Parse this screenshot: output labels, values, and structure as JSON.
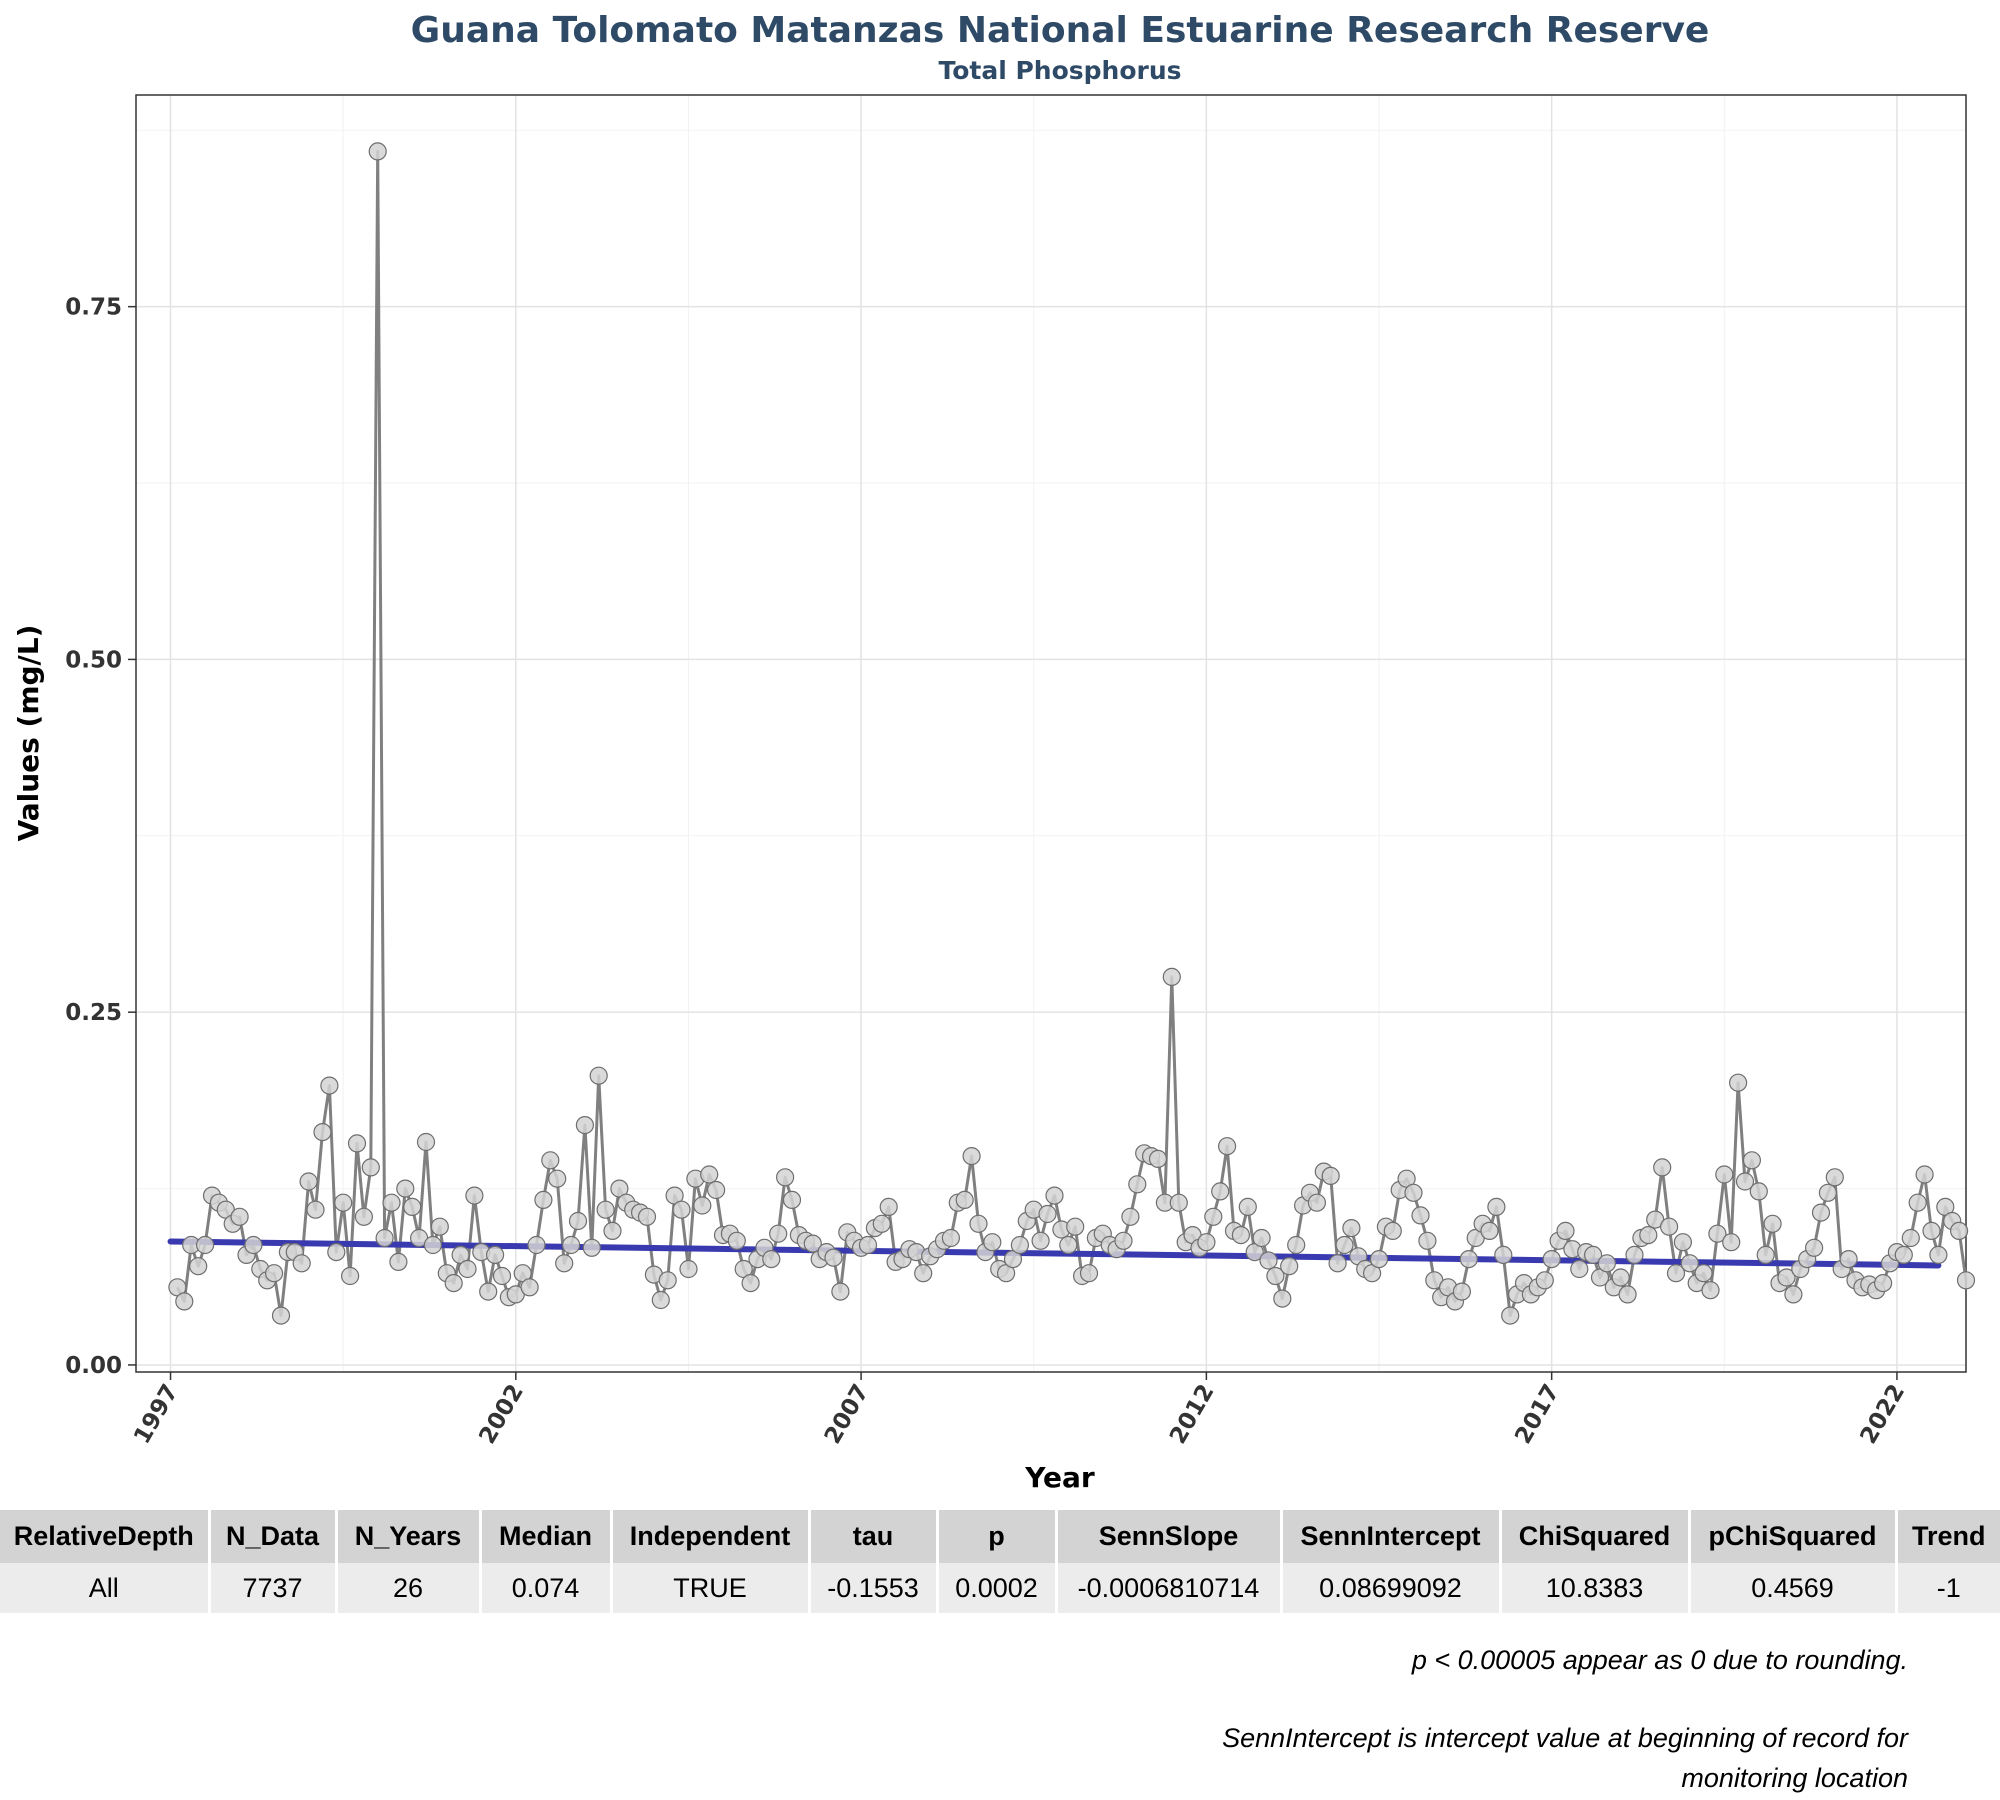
{
  "chart_data": {
    "type": "line",
    "title": "Guana Tolomato Matanzas National Estuarine Research Reserve",
    "subtitle": "Total Phosphorus",
    "xlabel": "Year",
    "ylabel": "Values (mg/L)",
    "xlim": [
      1996.5,
      2023.0
    ],
    "ylim": [
      -0.005,
      0.9
    ],
    "x_ticks": [
      "1997",
      "2002",
      "2007",
      "2012",
      "2017",
      "2022"
    ],
    "y_ticks": [
      "0.00",
      "0.25",
      "0.50",
      "0.75"
    ],
    "grid": true,
    "colors": {
      "observed": "#808080",
      "point_fill": "#d3d3d3",
      "trend": "#3a3ab0"
    },
    "series": [
      {
        "points": [
          [
            1997.1,
            0.055
          ],
          [
            1997.2,
            0.045
          ],
          [
            1997.3,
            0.085
          ],
          [
            1997.4,
            0.07
          ],
          [
            1997.5,
            0.085
          ],
          [
            1997.6,
            0.12
          ],
          [
            1997.7,
            0.115
          ],
          [
            1997.8,
            0.11
          ],
          [
            1997.9,
            0.1
          ],
          [
            1998.0,
            0.105
          ],
          [
            1998.1,
            0.078
          ],
          [
            1998.2,
            0.085
          ],
          [
            1998.3,
            0.068
          ],
          [
            1998.4,
            0.06
          ],
          [
            1998.5,
            0.065
          ],
          [
            1998.6,
            0.035
          ],
          [
            1998.7,
            0.08
          ],
          [
            1998.8,
            0.08
          ],
          [
            1998.9,
            0.072
          ],
          [
            1999.0,
            0.13
          ],
          [
            1999.1,
            0.11
          ],
          [
            1999.2,
            0.165
          ],
          [
            1999.3,
            0.198
          ],
          [
            1999.4,
            0.08
          ],
          [
            1999.5,
            0.115
          ],
          [
            1999.6,
            0.063
          ],
          [
            1999.7,
            0.157
          ],
          [
            1999.8,
            0.105
          ],
          [
            1999.9,
            0.14
          ],
          [
            2000.0,
            0.86
          ],
          [
            2000.1,
            0.09
          ],
          [
            2000.2,
            0.115
          ],
          [
            2000.3,
            0.073
          ],
          [
            2000.4,
            0.125
          ],
          [
            2000.5,
            0.112
          ],
          [
            2000.6,
            0.09
          ],
          [
            2000.7,
            0.158
          ],
          [
            2000.8,
            0.085
          ],
          [
            2000.9,
            0.098
          ],
          [
            2001.0,
            0.065
          ],
          [
            2001.1,
            0.058
          ],
          [
            2001.2,
            0.078
          ],
          [
            2001.3,
            0.068
          ],
          [
            2001.4,
            0.12
          ],
          [
            2001.5,
            0.08
          ],
          [
            2001.6,
            0.052
          ],
          [
            2001.7,
            0.078
          ],
          [
            2001.8,
            0.063
          ],
          [
            2001.9,
            0.048
          ],
          [
            2002.0,
            0.05
          ],
          [
            2002.1,
            0.065
          ],
          [
            2002.2,
            0.055
          ],
          [
            2002.3,
            0.085
          ],
          [
            2002.4,
            0.117
          ],
          [
            2002.5,
            0.145
          ],
          [
            2002.6,
            0.132
          ],
          [
            2002.7,
            0.072
          ],
          [
            2002.8,
            0.085
          ],
          [
            2002.9,
            0.102
          ],
          [
            2003.0,
            0.17
          ],
          [
            2003.1,
            0.083
          ],
          [
            2003.2,
            0.205
          ],
          [
            2003.3,
            0.11
          ],
          [
            2003.4,
            0.095
          ],
          [
            2003.5,
            0.125
          ],
          [
            2003.6,
            0.115
          ],
          [
            2003.7,
            0.11
          ],
          [
            2003.8,
            0.108
          ],
          [
            2003.9,
            0.105
          ],
          [
            2004.0,
            0.064
          ],
          [
            2004.1,
            0.046
          ],
          [
            2004.2,
            0.06
          ],
          [
            2004.3,
            0.12
          ],
          [
            2004.4,
            0.11
          ],
          [
            2004.5,
            0.068
          ],
          [
            2004.6,
            0.132
          ],
          [
            2004.7,
            0.113
          ],
          [
            2004.8,
            0.135
          ],
          [
            2004.9,
            0.124
          ],
          [
            2005.0,
            0.092
          ],
          [
            2005.1,
            0.093
          ],
          [
            2005.2,
            0.088
          ],
          [
            2005.3,
            0.068
          ],
          [
            2005.4,
            0.058
          ],
          [
            2005.5,
            0.075
          ],
          [
            2005.6,
            0.083
          ],
          [
            2005.7,
            0.075
          ],
          [
            2005.8,
            0.093
          ],
          [
            2005.9,
            0.133
          ],
          [
            2006.0,
            0.117
          ],
          [
            2006.1,
            0.092
          ],
          [
            2006.2,
            0.088
          ],
          [
            2006.3,
            0.086
          ],
          [
            2006.4,
            0.075
          ],
          [
            2006.5,
            0.08
          ],
          [
            2006.6,
            0.076
          ],
          [
            2006.7,
            0.052
          ],
          [
            2006.8,
            0.094
          ],
          [
            2006.9,
            0.088
          ],
          [
            2007.0,
            0.083
          ],
          [
            2007.1,
            0.085
          ],
          [
            2007.2,
            0.097
          ],
          [
            2007.3,
            0.1
          ],
          [
            2007.4,
            0.112
          ],
          [
            2007.5,
            0.073
          ],
          [
            2007.6,
            0.075
          ],
          [
            2007.7,
            0.082
          ],
          [
            2007.8,
            0.08
          ],
          [
            2007.9,
            0.065
          ],
          [
            2008.0,
            0.077
          ],
          [
            2008.1,
            0.082
          ],
          [
            2008.2,
            0.088
          ],
          [
            2008.3,
            0.09
          ],
          [
            2008.4,
            0.115
          ],
          [
            2008.5,
            0.117
          ],
          [
            2008.6,
            0.148
          ],
          [
            2008.7,
            0.1
          ],
          [
            2008.8,
            0.08
          ],
          [
            2008.9,
            0.087
          ],
          [
            2009.0,
            0.068
          ],
          [
            2009.1,
            0.065
          ],
          [
            2009.2,
            0.075
          ],
          [
            2009.3,
            0.085
          ],
          [
            2009.4,
            0.102
          ],
          [
            2009.5,
            0.11
          ],
          [
            2009.6,
            0.088
          ],
          [
            2009.7,
            0.107
          ],
          [
            2009.8,
            0.12
          ],
          [
            2009.9,
            0.096
          ],
          [
            2010.0,
            0.085
          ],
          [
            2010.1,
            0.098
          ],
          [
            2010.2,
            0.063
          ],
          [
            2010.3,
            0.065
          ],
          [
            2010.4,
            0.09
          ],
          [
            2010.5,
            0.093
          ],
          [
            2010.6,
            0.085
          ],
          [
            2010.7,
            0.082
          ],
          [
            2010.8,
            0.088
          ],
          [
            2010.9,
            0.105
          ],
          [
            2011.0,
            0.128
          ],
          [
            2011.1,
            0.15
          ],
          [
            2011.2,
            0.148
          ],
          [
            2011.3,
            0.146
          ],
          [
            2011.4,
            0.115
          ],
          [
            2011.5,
            0.275
          ],
          [
            2011.6,
            0.115
          ],
          [
            2011.7,
            0.087
          ],
          [
            2011.8,
            0.092
          ],
          [
            2011.9,
            0.083
          ],
          [
            2012.0,
            0.087
          ],
          [
            2012.1,
            0.105
          ],
          [
            2012.2,
            0.123
          ],
          [
            2012.3,
            0.155
          ],
          [
            2012.4,
            0.095
          ],
          [
            2012.5,
            0.092
          ],
          [
            2012.6,
            0.112
          ],
          [
            2012.7,
            0.08
          ],
          [
            2012.8,
            0.09
          ],
          [
            2012.9,
            0.074
          ],
          [
            2013.0,
            0.063
          ],
          [
            2013.1,
            0.047
          ],
          [
            2013.2,
            0.07
          ],
          [
            2013.3,
            0.085
          ],
          [
            2013.4,
            0.113
          ],
          [
            2013.5,
            0.122
          ],
          [
            2013.6,
            0.115
          ],
          [
            2013.7,
            0.137
          ],
          [
            2013.8,
            0.134
          ],
          [
            2013.9,
            0.072
          ],
          [
            2014.0,
            0.085
          ],
          [
            2014.1,
            0.097
          ],
          [
            2014.2,
            0.077
          ],
          [
            2014.3,
            0.068
          ],
          [
            2014.4,
            0.065
          ],
          [
            2014.5,
            0.075
          ],
          [
            2014.6,
            0.098
          ],
          [
            2014.7,
            0.095
          ],
          [
            2014.8,
            0.124
          ],
          [
            2014.9,
            0.132
          ],
          [
            2015.0,
            0.122
          ],
          [
            2015.1,
            0.106
          ],
          [
            2015.2,
            0.088
          ],
          [
            2015.3,
            0.06
          ],
          [
            2015.4,
            0.048
          ],
          [
            2015.5,
            0.055
          ],
          [
            2015.6,
            0.045
          ],
          [
            2015.7,
            0.052
          ],
          [
            2015.8,
            0.075
          ],
          [
            2015.9,
            0.09
          ],
          [
            2016.0,
            0.1
          ],
          [
            2016.1,
            0.095
          ],
          [
            2016.2,
            0.112
          ],
          [
            2016.3,
            0.078
          ],
          [
            2016.4,
            0.035
          ],
          [
            2016.5,
            0.05
          ],
          [
            2016.6,
            0.058
          ],
          [
            2016.7,
            0.05
          ],
          [
            2016.8,
            0.055
          ],
          [
            2016.9,
            0.06
          ],
          [
            2017.0,
            0.075
          ],
          [
            2017.1,
            0.088
          ],
          [
            2017.2,
            0.095
          ],
          [
            2017.3,
            0.082
          ],
          [
            2017.4,
            0.068
          ],
          [
            2017.5,
            0.08
          ],
          [
            2017.6,
            0.078
          ],
          [
            2017.7,
            0.062
          ],
          [
            2017.8,
            0.072
          ],
          [
            2017.9,
            0.055
          ],
          [
            2018.0,
            0.062
          ],
          [
            2018.1,
            0.05
          ],
          [
            2018.2,
            0.078
          ],
          [
            2018.3,
            0.09
          ],
          [
            2018.4,
            0.092
          ],
          [
            2018.5,
            0.103
          ],
          [
            2018.6,
            0.14
          ],
          [
            2018.7,
            0.098
          ],
          [
            2018.8,
            0.065
          ],
          [
            2018.9,
            0.087
          ],
          [
            2019.0,
            0.072
          ],
          [
            2019.1,
            0.058
          ],
          [
            2019.2,
            0.065
          ],
          [
            2019.3,
            0.053
          ],
          [
            2019.4,
            0.093
          ],
          [
            2019.5,
            0.135
          ],
          [
            2019.6,
            0.087
          ],
          [
            2019.7,
            0.2
          ],
          [
            2019.8,
            0.13
          ],
          [
            2019.9,
            0.145
          ],
          [
            2020.0,
            0.123
          ],
          [
            2020.1,
            0.078
          ],
          [
            2020.2,
            0.1
          ],
          [
            2020.3,
            0.058
          ],
          [
            2020.4,
            0.062
          ],
          [
            2020.5,
            0.05
          ],
          [
            2020.6,
            0.068
          ],
          [
            2020.7,
            0.075
          ],
          [
            2020.8,
            0.083
          ],
          [
            2020.9,
            0.108
          ],
          [
            2021.0,
            0.122
          ],
          [
            2021.1,
            0.133
          ],
          [
            2021.2,
            0.068
          ],
          [
            2021.3,
            0.075
          ],
          [
            2021.4,
            0.06
          ],
          [
            2021.5,
            0.055
          ],
          [
            2021.6,
            0.057
          ],
          [
            2021.7,
            0.053
          ],
          [
            2021.8,
            0.058
          ],
          [
            2021.9,
            0.072
          ],
          [
            2022.0,
            0.08
          ],
          [
            2022.1,
            0.078
          ],
          [
            2022.2,
            0.09
          ],
          [
            2022.3,
            0.115
          ],
          [
            2022.4,
            0.135
          ],
          [
            2022.5,
            0.095
          ],
          [
            2022.6,
            0.078
          ],
          [
            2022.7,
            0.112
          ],
          [
            2022.8,
            0.102
          ],
          [
            2022.9,
            0.095
          ],
          [
            2023.0,
            0.06
          ]
        ]
      },
      {
        "type": "trend",
        "x": [
          1997.0,
          2022.6
        ],
        "y": [
          0.0875,
          0.0705
        ]
      }
    ]
  },
  "table": {
    "headers": [
      "RelativeDepth",
      "N_Data",
      "N_Years",
      "Median",
      "Independent",
      "tau",
      "p",
      "SennSlope",
      "SennIntercept",
      "ChiSquared",
      "pChiSquared",
      "Trend"
    ],
    "rows": [
      [
        "All",
        "7737",
        "26",
        "0.074",
        "TRUE",
        "-0.1553",
        "0.0002",
        "-0.0006810714",
        "0.08699092",
        "10.8383",
        "0.4569",
        "-1"
      ]
    ]
  },
  "footnotes": {
    "note1": "p < 0.00005 appear as 0 due to rounding.",
    "note2": "SennIntercept is intercept value at beginning of record for monitoring location"
  }
}
